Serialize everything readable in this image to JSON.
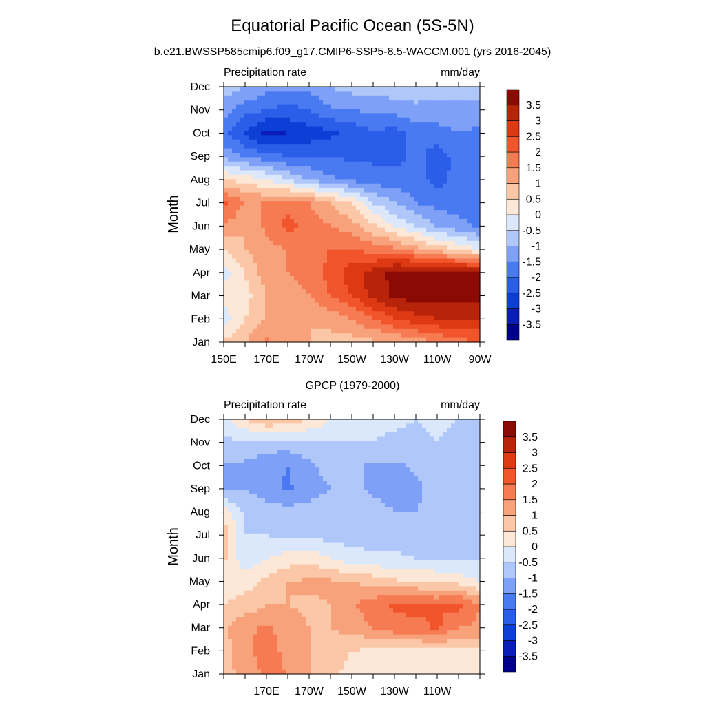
{
  "title": "Equatorial Pacific Ocean (5S-5N)",
  "colors": [
    "#00008f",
    "#0a1db8",
    "#0d3fd6",
    "#2a5de8",
    "#4a7af2",
    "#7ea0f7",
    "#b0c8f9",
    "#dbe7fb",
    "#fde8d8",
    "#fbc7a7",
    "#f8a27c",
    "#f67a52",
    "#f2542c",
    "#dd3a14",
    "#b8240a",
    "#8c0a04"
  ],
  "chart_data": [
    {
      "type": "heatmap",
      "subtitle": "b.e21.BWSSP585cmip6.f09_g17.CMIP6-SSP5-8.5-WACCM.001 (yrs 2016-2045)",
      "left_label": "Precipitation rate",
      "right_label": "mm/day",
      "ylabel": "Month",
      "y_ticks": [
        "Jan",
        "Feb",
        "Mar",
        "Apr",
        "May",
        "Jun",
        "Jul",
        "Aug",
        "Sep",
        "Oct",
        "Nov",
        "Dec"
      ],
      "x_ticks": [
        {
          "lon": 150,
          "label": "150E"
        },
        {
          "lon": 170,
          "label": "170E"
        },
        {
          "lon": 190,
          "label": "170W"
        },
        {
          "lon": 210,
          "label": "150W"
        },
        {
          "lon": 230,
          "label": "130W"
        },
        {
          "lon": 250,
          "label": "110W"
        },
        {
          "lon": 270,
          "label": "90W"
        }
      ],
      "xlim": [
        150,
        270
      ],
      "colorbar": {
        "levels": [
          -3.5,
          -3,
          -2.5,
          -2,
          -1.5,
          -1,
          -0.5,
          0,
          0.5,
          1,
          1.5,
          2,
          2.5,
          3,
          3.5
        ],
        "labels": [
          "-3.5",
          "-3",
          "-2.5",
          "-2",
          "-1.5",
          "-1",
          "-0.5",
          "0",
          "0.5",
          "1",
          "1.5",
          "2",
          "2.5",
          "3",
          "3.5"
        ]
      },
      "lon": [
        150,
        160,
        170,
        180,
        190,
        200,
        210,
        220,
        230,
        240,
        250,
        260,
        270
      ],
      "months": [
        "Jan",
        "Feb",
        "Mar",
        "Apr",
        "May",
        "Jun",
        "Jul",
        "Aug",
        "Sep",
        "Oct",
        "Nov",
        "Dec"
      ],
      "z": [
        [
          0.6,
          1.0,
          1.6,
          1.2,
          1.0,
          0.8,
          0.8,
          0.9,
          1.0,
          1.2,
          1.5,
          1.8,
          2.0
        ],
        [
          -0.3,
          0.5,
          1.0,
          1.0,
          1.0,
          1.2,
          1.5,
          2.0,
          2.5,
          2.8,
          3.0,
          3.0,
          3.0
        ],
        [
          0.3,
          0.3,
          1.0,
          1.2,
          1.5,
          2.0,
          2.5,
          3.2,
          3.6,
          3.8,
          3.8,
          3.8,
          3.7
        ],
        [
          -0.3,
          0.5,
          1.3,
          1.5,
          1.7,
          2.2,
          2.8,
          3.2,
          3.7,
          3.7,
          3.6,
          3.6,
          3.5
        ],
        [
          0.5,
          1.0,
          1.3,
          1.5,
          1.7,
          2.0,
          2.0,
          1.8,
          1.6,
          1.2,
          0.8,
          0.4,
          0.0
        ],
        [
          1.5,
          1.0,
          1.6,
          2.2,
          1.8,
          1.5,
          1.2,
          0.6,
          0.0,
          -0.5,
          -1.0,
          -1.3,
          -1.6
        ],
        [
          2.2,
          1.5,
          1.5,
          1.8,
          1.5,
          1.0,
          0.5,
          -0.5,
          -1.0,
          -1.5,
          -1.7,
          -1.8,
          -1.8
        ],
        [
          0.6,
          0.3,
          0.0,
          -0.5,
          -1.0,
          -1.4,
          -1.6,
          -1.8,
          -1.8,
          -1.8,
          -2.2,
          -1.8,
          -1.7
        ],
        [
          -1.2,
          -1.5,
          -1.8,
          -2.0,
          -2.0,
          -2.0,
          -2.1,
          -2.1,
          -2.2,
          -1.8,
          -2.3,
          -1.8,
          -1.6
        ],
        [
          -1.8,
          -2.6,
          -3.2,
          -3.0,
          -2.8,
          -2.6,
          -2.4,
          -2.1,
          -2.2,
          -1.8,
          -1.7,
          -1.5,
          -1.6
        ],
        [
          -1.3,
          -1.8,
          -2.0,
          -2.2,
          -2.0,
          -1.6,
          -1.5,
          -1.4,
          -1.3,
          -1.2,
          -1.2,
          -1.2,
          -1.3
        ],
        [
          -0.7,
          -1.0,
          -1.3,
          -1.4,
          -1.3,
          -1.0,
          -0.8,
          -0.7,
          -0.7,
          -0.6,
          -0.7,
          -0.6,
          -0.6
        ]
      ]
    },
    {
      "type": "heatmap",
      "subtitle": "GPCP (1979-2000)",
      "left_label": "Precipitation rate",
      "right_label": "mm/day",
      "ylabel": "Month",
      "y_ticks": [
        "Jan",
        "Feb",
        "Mar",
        "Apr",
        "May",
        "Jun",
        "Jul",
        "Aug",
        "Sep",
        "Oct",
        "Nov",
        "Dec"
      ],
      "x_ticks": [
        {
          "lon": 170,
          "label": "170E"
        },
        {
          "lon": 190,
          "label": "170W"
        },
        {
          "lon": 210,
          "label": "150W"
        },
        {
          "lon": 230,
          "label": "130W"
        },
        {
          "lon": 250,
          "label": "110W"
        }
      ],
      "xlim": [
        150,
        270
      ],
      "colorbar": {
        "levels": [
          -3.5,
          -3,
          -2.5,
          -2,
          -1.5,
          -1,
          -0.5,
          0,
          0.5,
          1,
          1.5,
          2,
          2.5,
          3,
          3.5
        ],
        "labels": [
          "-3.5",
          "-3",
          "-2.5",
          "-2",
          "-1.5",
          "-1",
          "-0.5",
          "0",
          "0.5",
          "1",
          "1.5",
          "2",
          "2.5",
          "3",
          "3.5"
        ]
      },
      "lon": [
        150,
        160,
        170,
        180,
        190,
        200,
        210,
        220,
        230,
        240,
        250,
        260,
        270
      ],
      "months": [
        "Jan",
        "Feb",
        "Mar",
        "Apr",
        "May",
        "Jun",
        "Jul",
        "Aug",
        "Sep",
        "Oct",
        "Nov",
        "Dec"
      ],
      "z": [
        [
          0.8,
          1.2,
          1.6,
          1.5,
          1.0,
          0.6,
          0.3,
          0.3,
          0.2,
          0.3,
          0.2,
          0.3,
          0.3
        ],
        [
          0.8,
          1.3,
          1.8,
          1.3,
          1.0,
          0.8,
          0.5,
          0.4,
          0.4,
          0.3,
          0.4,
          0.4,
          0.4
        ],
        [
          0.9,
          1.4,
          1.6,
          1.3,
          1.0,
          1.0,
          1.2,
          1.5,
          1.8,
          1.8,
          2.1,
          1.5,
          1.4
        ],
        [
          0.5,
          0.7,
          1.0,
          1.0,
          0.9,
          1.0,
          1.4,
          1.8,
          2.1,
          2.2,
          2.0,
          2.2,
          1.5
        ],
        [
          0.2,
          0.3,
          0.6,
          1.0,
          1.1,
          1.1,
          1.0,
          0.8,
          0.6,
          0.5,
          0.4,
          0.3,
          0.0
        ],
        [
          0.6,
          -0.3,
          0.0,
          0.2,
          0.3,
          0.0,
          -0.3,
          -0.4,
          -0.4,
          -0.5,
          -0.5,
          -0.6,
          -0.5
        ],
        [
          0.8,
          -0.5,
          -0.5,
          -0.6,
          -0.6,
          -0.7,
          -0.7,
          -0.7,
          -0.8,
          -0.7,
          -0.8,
          -0.6,
          -0.6
        ],
        [
          0.4,
          -0.6,
          -0.7,
          -0.8,
          -0.8,
          -0.8,
          -0.8,
          -0.8,
          -1.0,
          -1.0,
          -0.8,
          -0.8,
          -0.7
        ],
        [
          -1.2,
          -1.0,
          -1.3,
          -1.6,
          -1.2,
          -1.0,
          -0.8,
          -1.1,
          -1.2,
          -1.1,
          -0.8,
          -1.0,
          -0.9
        ],
        [
          -1.0,
          -1.1,
          -1.3,
          -1.5,
          -1.1,
          -0.8,
          -0.9,
          -1.1,
          -1.1,
          -0.9,
          -0.9,
          -0.9,
          -0.8
        ],
        [
          -0.6,
          -0.6,
          -0.7,
          -0.7,
          -0.6,
          -0.5,
          -0.5,
          -0.5,
          -0.6,
          -0.6,
          -0.5,
          -0.6,
          -0.6
        ],
        [
          -0.3,
          0.5,
          1.0,
          0.9,
          0.5,
          0.0,
          -0.3,
          -0.4,
          -0.4,
          -0.5,
          -0.4,
          -0.5,
          -0.5
        ]
      ]
    }
  ]
}
